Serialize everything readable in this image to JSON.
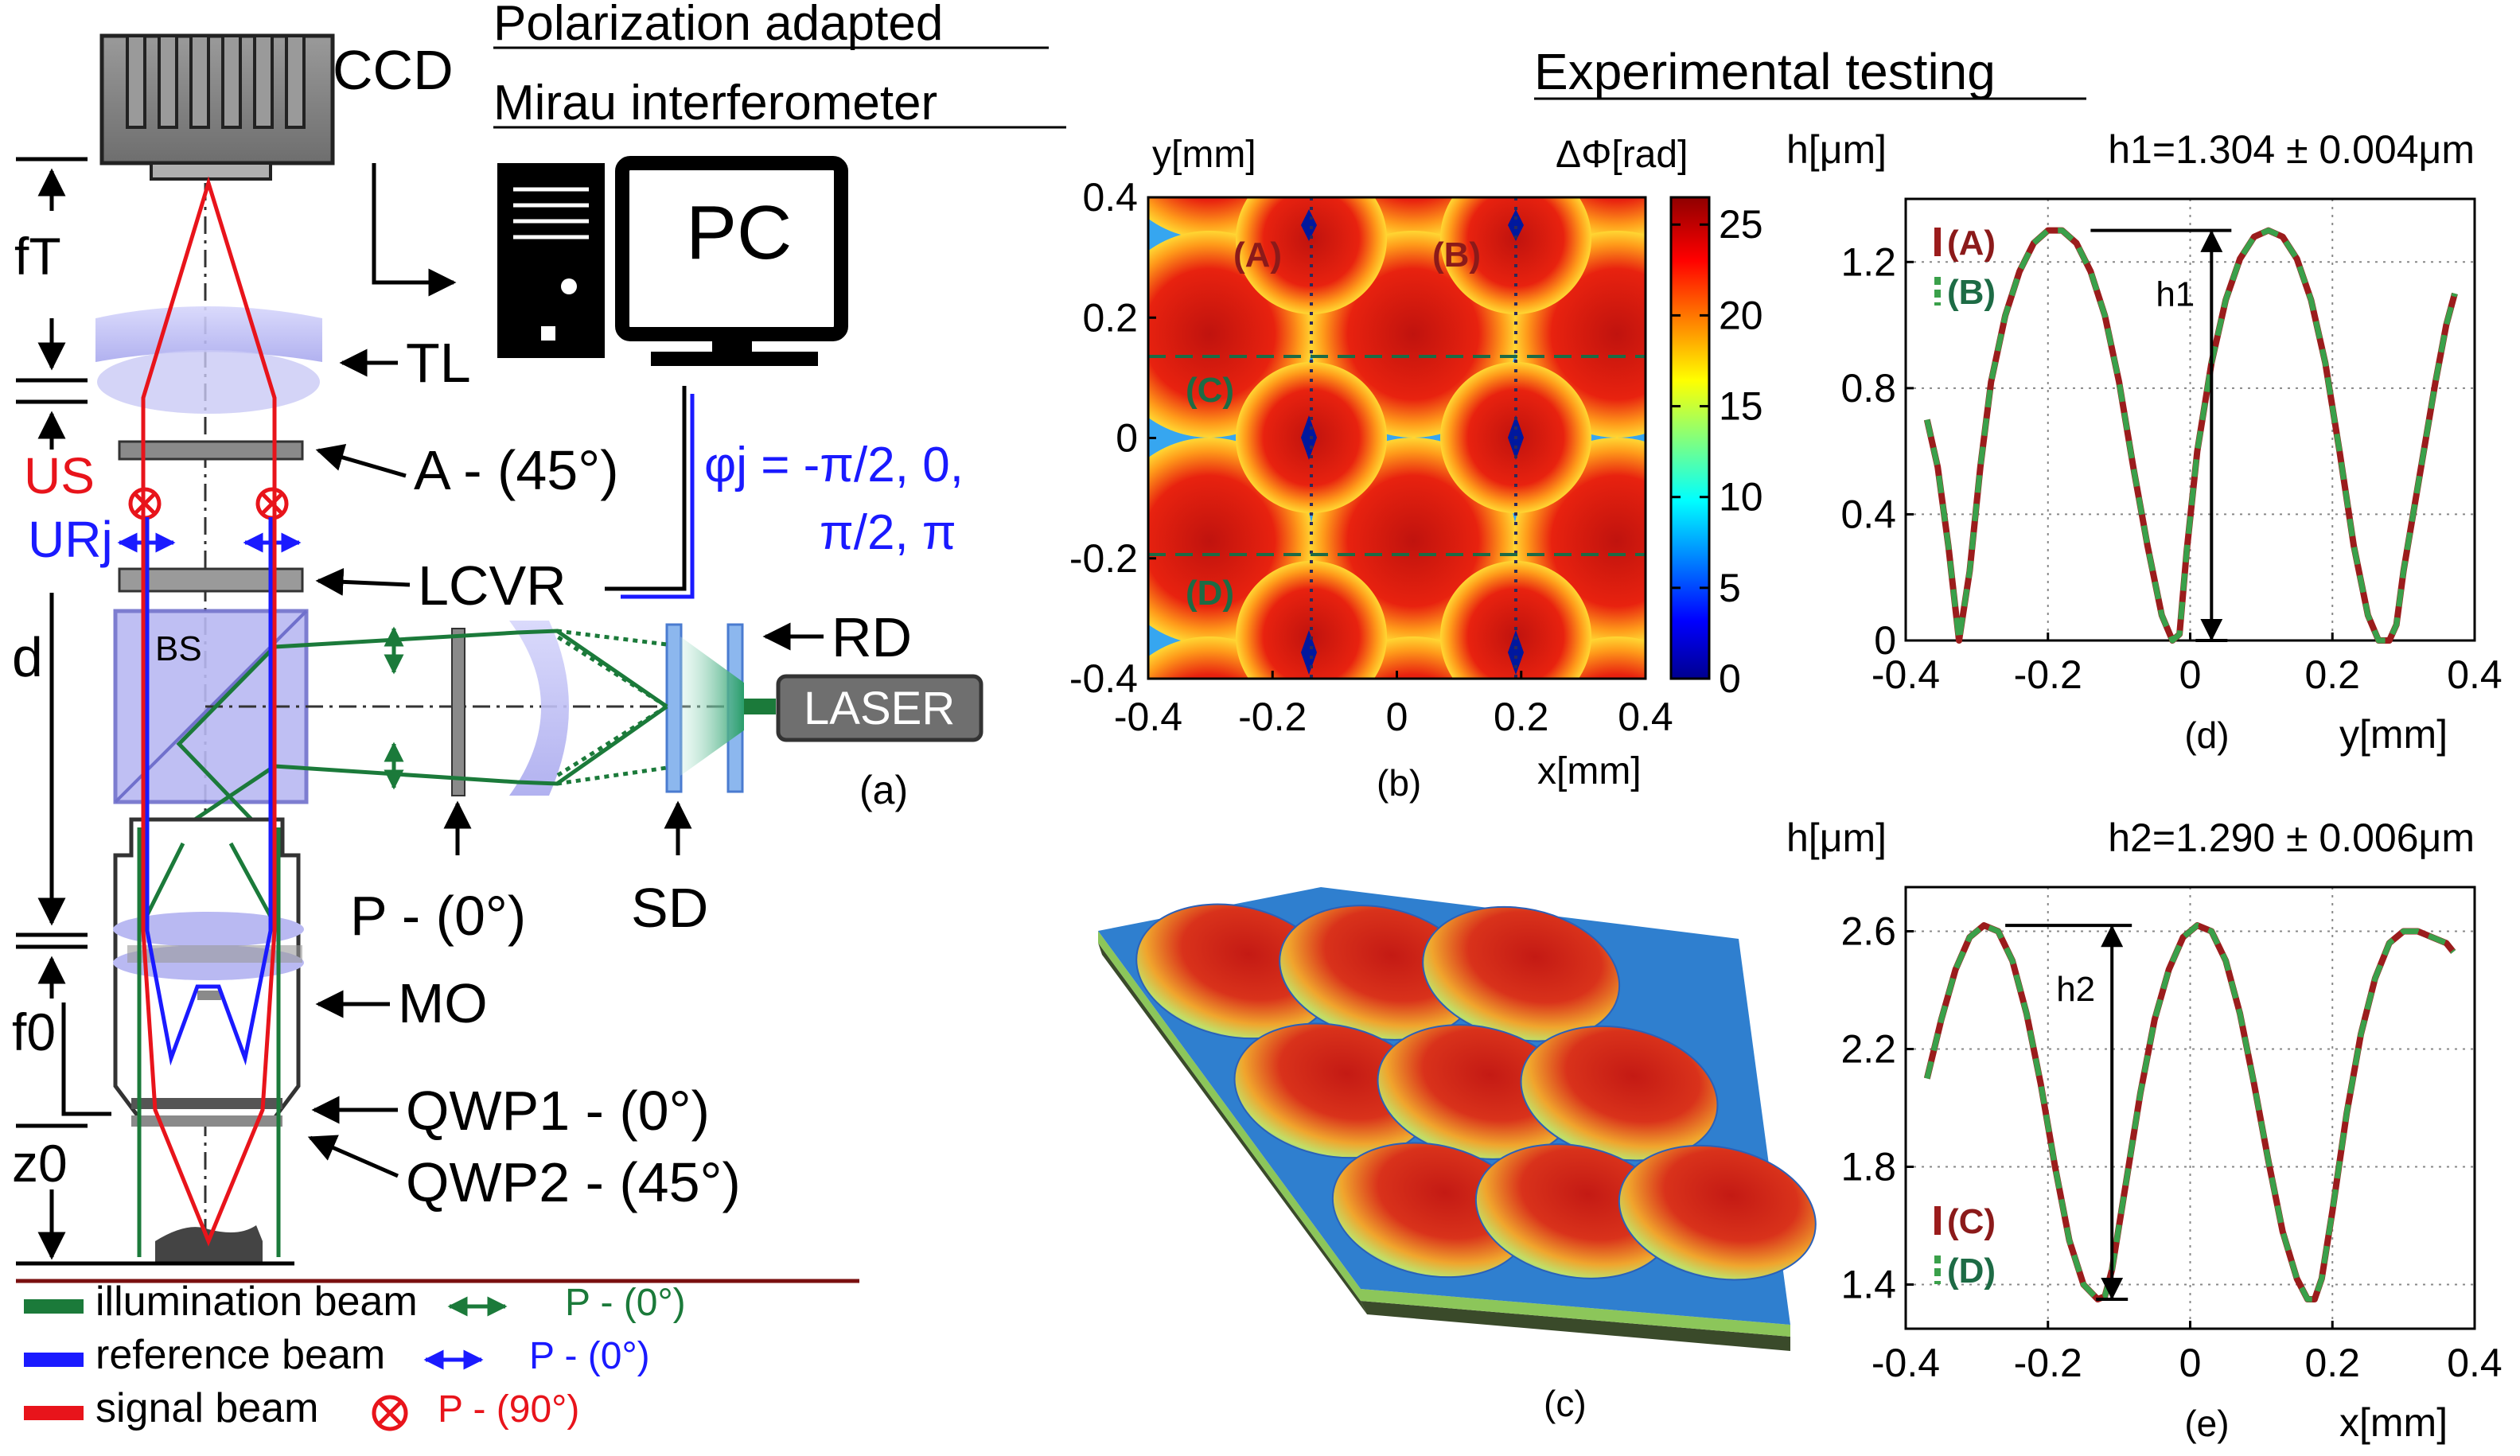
{
  "colors": {
    "signal": "#e8141b",
    "reference": "#1a1aff",
    "illumination": "#1b7a3a",
    "curve_red": "#9b1c1c",
    "curve_green": "#3aa04a",
    "label_red": "#8b1a1a",
    "label_green": "#1d6b45",
    "lens": "#b9b9f2",
    "rule": "#7a1010"
  },
  "setup": {
    "title_line1": "Polarization adapted",
    "title_line2": "Mirau interferometer",
    "ccd": "CCD",
    "pc": "PC",
    "tl": "TL",
    "analyzer": "A - (45°)",
    "lcvr": "LCVR",
    "phi_line1": "φj = -π/2, 0,",
    "phi_line2": "π/2, π",
    "bs": "BS",
    "rd": "RD",
    "laser": "LASER",
    "polarizer": "P - (0°)",
    "sd": "SD",
    "mo": "MO",
    "qwp1": "QWP1 - (0°)",
    "qwp2": "QWP2 - (45°)",
    "f_t": "fT",
    "u_s": "US",
    "u_r": "URj",
    "d": "d",
    "f_0": "f0",
    "z_0": "z0",
    "panel": "(a)"
  },
  "legend": [
    {
      "label": "illumination beam",
      "pol": "P - (0°)",
      "color": "illumination",
      "icon": "double-arrow-icon"
    },
    {
      "label": "reference beam",
      "pol": "P - (0°)",
      "color": "reference",
      "icon": "double-arrow-icon"
    },
    {
      "label": "signal beam",
      "pol": "P - (90°)",
      "color": "signal",
      "icon": "circle-cross-icon"
    }
  ],
  "experimental_title": "Experimental testing",
  "map_panel": {
    "label": "(b)",
    "ylabel": "y[mm]",
    "xlabel": "x[mm]",
    "cbar_label": "ΔΦ[rad]",
    "xticks": [
      "-0.4",
      "-0.2",
      "0",
      "0.2",
      "0.4"
    ],
    "yticks": [
      "0.4",
      "0.2",
      "0",
      "-0.2",
      "-0.4"
    ],
    "cbar_ticks": [
      "25",
      "20",
      "15",
      "10",
      "5",
      "0"
    ],
    "line_labels": [
      "(A)",
      "(B)",
      "(C)",
      "(D)"
    ]
  },
  "surface_panel": {
    "label": "(c)"
  },
  "chart_data": [
    {
      "type": "line",
      "panel": "(d)",
      "ylabel": "h[μm]",
      "xlabel": "y[mm]",
      "xlim": [
        -0.4,
        0.4
      ],
      "ylim": [
        0,
        1.4
      ],
      "xticks": [
        -0.4,
        -0.2,
        0,
        0.2,
        0.4
      ],
      "yticks": [
        0,
        0.4,
        0.8,
        1.2
      ],
      "xtick_labels": [
        "-0.4",
        "-0.2",
        "0",
        "0.2",
        "0.4"
      ],
      "ytick_labels": [
        "0",
        "0.4",
        "0.8",
        "1.2"
      ],
      "annotation": "h1=1.304 ± 0.004μm",
      "height_label": "h1",
      "grid": true,
      "legend_position": "top-left",
      "series": [
        {
          "name": "(A)",
          "style": "solid",
          "color": "curve_red",
          "x": [
            -0.37,
            -0.355,
            -0.34,
            -0.325,
            -0.31,
            -0.295,
            -0.28,
            -0.26,
            -0.24,
            -0.22,
            -0.2,
            -0.18,
            -0.16,
            -0.14,
            -0.12,
            -0.1,
            -0.08,
            -0.06,
            -0.04,
            -0.025,
            -0.015,
            -0.005,
            0.01,
            0.03,
            0.05,
            0.07,
            0.09,
            0.11,
            0.13,
            0.15,
            0.17,
            0.19,
            0.21,
            0.23,
            0.25,
            0.265,
            0.28,
            0.29,
            0.3,
            0.315,
            0.33,
            0.345,
            0.36,
            0.372
          ],
          "y": [
            0.7,
            0.55,
            0.3,
            0.0,
            0.22,
            0.55,
            0.82,
            1.03,
            1.17,
            1.26,
            1.3,
            1.3,
            1.26,
            1.17,
            1.03,
            0.82,
            0.55,
            0.3,
            0.08,
            0.0,
            0.02,
            0.28,
            0.6,
            0.88,
            1.08,
            1.21,
            1.28,
            1.3,
            1.28,
            1.21,
            1.08,
            0.88,
            0.6,
            0.3,
            0.08,
            0.0,
            0.0,
            0.05,
            0.22,
            0.42,
            0.62,
            0.82,
            1.0,
            1.1
          ]
        },
        {
          "name": "(B)",
          "style": "dashed",
          "color": "curve_green",
          "x": [
            -0.37,
            -0.355,
            -0.34,
            -0.325,
            -0.31,
            -0.295,
            -0.28,
            -0.26,
            -0.24,
            -0.22,
            -0.2,
            -0.18,
            -0.16,
            -0.14,
            -0.12,
            -0.1,
            -0.08,
            -0.06,
            -0.04,
            -0.025,
            -0.015,
            -0.005,
            0.01,
            0.03,
            0.05,
            0.07,
            0.09,
            0.11,
            0.13,
            0.15,
            0.17,
            0.19,
            0.21,
            0.23,
            0.25,
            0.265,
            0.28,
            0.29,
            0.3,
            0.315,
            0.33,
            0.345,
            0.36,
            0.372
          ],
          "y": [
            0.7,
            0.55,
            0.3,
            0.0,
            0.22,
            0.55,
            0.82,
            1.03,
            1.17,
            1.26,
            1.3,
            1.3,
            1.26,
            1.17,
            1.03,
            0.82,
            0.55,
            0.3,
            0.08,
            0.0,
            0.02,
            0.28,
            0.6,
            0.88,
            1.08,
            1.21,
            1.28,
            1.3,
            1.28,
            1.21,
            1.08,
            0.88,
            0.6,
            0.3,
            0.08,
            0.0,
            0.0,
            0.05,
            0.22,
            0.42,
            0.62,
            0.82,
            1.0,
            1.1
          ]
        }
      ]
    },
    {
      "type": "line",
      "panel": "(e)",
      "ylabel": "h[μm]",
      "xlabel": "x[mm]",
      "xlim": [
        -0.4,
        0.4
      ],
      "ylim": [
        1.25,
        2.75
      ],
      "xticks": [
        -0.4,
        -0.2,
        0,
        0.2,
        0.4
      ],
      "yticks": [
        1.4,
        1.8,
        2.2,
        2.6
      ],
      "xtick_labels": [
        "-0.4",
        "-0.2",
        "0",
        "0.2",
        "0.4"
      ],
      "ytick_labels": [
        "1.4",
        "1.8",
        "2.2",
        "2.6"
      ],
      "annotation": "h2=1.290 ± 0.006μm",
      "height_label": "h2",
      "grid": true,
      "legend_position": "bottom-left",
      "series": [
        {
          "name": "(C)",
          "style": "solid",
          "color": "curve_red",
          "x": [
            -0.37,
            -0.35,
            -0.33,
            -0.31,
            -0.29,
            -0.27,
            -0.25,
            -0.23,
            -0.21,
            -0.19,
            -0.17,
            -0.15,
            -0.13,
            -0.12,
            -0.11,
            -0.09,
            -0.07,
            -0.05,
            -0.03,
            -0.01,
            0.01,
            0.03,
            0.05,
            0.07,
            0.09,
            0.11,
            0.13,
            0.15,
            0.165,
            0.175,
            0.185,
            0.2,
            0.22,
            0.24,
            0.26,
            0.28,
            0.3,
            0.32,
            0.34,
            0.36,
            0.37
          ],
          "y": [
            2.1,
            2.3,
            2.47,
            2.58,
            2.62,
            2.6,
            2.5,
            2.32,
            2.08,
            1.8,
            1.55,
            1.4,
            1.35,
            1.36,
            1.45,
            1.75,
            2.05,
            2.3,
            2.47,
            2.58,
            2.62,
            2.6,
            2.5,
            2.32,
            2.08,
            1.82,
            1.58,
            1.42,
            1.35,
            1.35,
            1.42,
            1.65,
            1.98,
            2.25,
            2.44,
            2.56,
            2.6,
            2.6,
            2.58,
            2.56,
            2.53
          ]
        },
        {
          "name": "(D)",
          "style": "dashed",
          "color": "curve_green",
          "x": [
            -0.37,
            -0.35,
            -0.33,
            -0.31,
            -0.29,
            -0.27,
            -0.25,
            -0.23,
            -0.21,
            -0.19,
            -0.17,
            -0.15,
            -0.13,
            -0.12,
            -0.11,
            -0.09,
            -0.07,
            -0.05,
            -0.03,
            -0.01,
            0.01,
            0.03,
            0.05,
            0.07,
            0.09,
            0.11,
            0.13,
            0.15,
            0.165,
            0.175,
            0.185,
            0.2,
            0.22,
            0.24,
            0.26,
            0.28,
            0.3,
            0.32,
            0.34,
            0.36,
            0.37
          ],
          "y": [
            2.1,
            2.3,
            2.47,
            2.58,
            2.62,
            2.6,
            2.5,
            2.32,
            2.08,
            1.8,
            1.55,
            1.4,
            1.35,
            1.36,
            1.45,
            1.75,
            2.05,
            2.3,
            2.47,
            2.58,
            2.62,
            2.6,
            2.5,
            2.32,
            2.08,
            1.82,
            1.58,
            1.42,
            1.35,
            1.35,
            1.42,
            1.65,
            1.98,
            2.25,
            2.44,
            2.56,
            2.6,
            2.6,
            2.58,
            2.56,
            2.53
          ]
        }
      ]
    }
  ]
}
